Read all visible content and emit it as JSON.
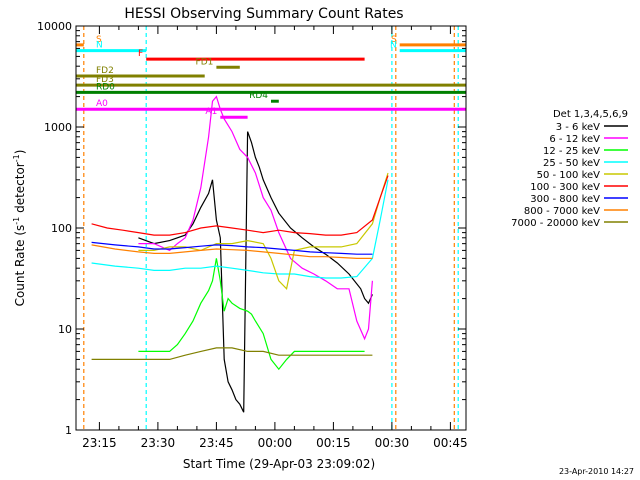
{
  "chart_data": {
    "type": "line",
    "title": "HESSI Observing Summary Count Rates",
    "xlabel": "Start Time (29-Apr-03 23:09:02)",
    "ylabel_main": "Count Rate (s",
    "ylabel_exp1": "-1",
    "ylabel_mid": " detector",
    "ylabel_exp2": "-1",
    "ylabel_end": ")",
    "yscale": "log",
    "ylim": [
      1,
      10000
    ],
    "xlim_minutes": [
      0,
      100
    ],
    "x_ticks": [
      {
        "label": "23:15",
        "min": 6
      },
      {
        "label": "23:30",
        "min": 21
      },
      {
        "label": "23:45",
        "min": 36
      },
      {
        "label": "00:00",
        "min": 51
      },
      {
        "label": "00:15",
        "min": 66
      },
      {
        "label": "00:30",
        "min": 81
      },
      {
        "label": "00:45",
        "min": 96
      }
    ],
    "y_ticks": [
      {
        "label": "1",
        "v": 1
      },
      {
        "label": "10",
        "v": 10
      },
      {
        "label": "100",
        "v": 100
      },
      {
        "label": "1000",
        "v": 1000
      },
      {
        "label": "10000",
        "v": 10000
      }
    ],
    "legend_title": "Det 1,3,4,5,6,9",
    "legend_position": "right",
    "series": [
      {
        "name": "3 - 6 keV",
        "color": "#000000",
        "x": [
          16,
          20,
          24,
          28,
          30,
          32,
          34,
          35,
          36,
          37,
          38,
          39,
          40,
          41,
          42,
          43,
          44,
          45,
          46,
          47,
          48,
          50,
          52,
          55,
          58,
          61,
          64,
          67,
          70,
          73,
          74,
          75,
          76
        ],
        "y": [
          80,
          70,
          75,
          85,
          110,
          160,
          220,
          300,
          120,
          80,
          5,
          3,
          2.5,
          2,
          1.8,
          1.5,
          900,
          700,
          500,
          400,
          300,
          200,
          140,
          100,
          80,
          65,
          55,
          45,
          35,
          25,
          20,
          18,
          22
        ]
      },
      {
        "name": "6 - 12 keV",
        "color": "#ff00ff",
        "x": [
          16,
          20,
          24,
          26,
          28,
          30,
          32,
          34,
          35,
          36,
          37,
          38,
          40,
          42,
          44,
          46,
          48,
          50,
          52,
          55,
          58,
          61,
          64,
          67,
          70,
          72,
          74,
          75,
          76
        ],
        "y": [
          70,
          70,
          60,
          70,
          80,
          120,
          250,
          800,
          1800,
          2000,
          1500,
          1200,
          900,
          600,
          500,
          350,
          200,
          150,
          90,
          50,
          40,
          35,
          30,
          25,
          25,
          12,
          8,
          10,
          30
        ]
      },
      {
        "name": "12 - 25 keV",
        "color": "#00ff00",
        "x": [
          16,
          18,
          20,
          22,
          24,
          26,
          28,
          30,
          32,
          34,
          35,
          36,
          37,
          38,
          39,
          40,
          42,
          44,
          45,
          46,
          48,
          50,
          52,
          54,
          56,
          58,
          60,
          64,
          68,
          72,
          74
        ],
        "y": [
          6,
          6,
          6,
          6,
          6,
          7,
          9,
          12,
          18,
          24,
          30,
          50,
          30,
          15,
          20,
          18,
          16,
          15,
          14,
          12,
          9,
          5,
          4,
          5,
          6,
          6,
          6,
          6,
          6,
          6,
          6
        ]
      },
      {
        "name": "25 - 50 keV",
        "color": "#00ffff",
        "x": [
          4,
          10,
          16,
          20,
          24,
          28,
          32,
          36,
          40,
          44,
          48,
          52,
          56,
          60,
          64,
          68,
          72,
          76,
          78,
          80
        ],
        "y": [
          45,
          42,
          40,
          38,
          38,
          40,
          40,
          42,
          40,
          38,
          36,
          35,
          35,
          33,
          32,
          32,
          33,
          50,
          120,
          300
        ]
      },
      {
        "name": "50 - 100 keV",
        "color": "#c8c800",
        "x": [
          16,
          20,
          24,
          28,
          32,
          36,
          40,
          44,
          48,
          50,
          52,
          54,
          56,
          60,
          64,
          68,
          72,
          76,
          78,
          80
        ],
        "y": [
          60,
          60,
          65,
          65,
          60,
          70,
          70,
          75,
          70,
          50,
          30,
          25,
          60,
          65,
          65,
          65,
          70,
          110,
          200,
          350
        ]
      },
      {
        "name": "100 - 300 keV",
        "color": "#ff0000",
        "x": [
          4,
          8,
          12,
          16,
          20,
          24,
          28,
          32,
          36,
          40,
          44,
          48,
          52,
          56,
          60,
          64,
          68,
          72,
          76,
          78,
          80
        ],
        "y": [
          110,
          100,
          95,
          90,
          85,
          85,
          90,
          100,
          105,
          100,
          95,
          90,
          95,
          90,
          88,
          85,
          85,
          90,
          120,
          200,
          330
        ]
      },
      {
        "name": "300 - 800 keV",
        "color": "#0000ff",
        "x": [
          4,
          10,
          16,
          20,
          24,
          28,
          32,
          36,
          40,
          44,
          48,
          52,
          56,
          60,
          64,
          68,
          72,
          76
        ],
        "y": [
          72,
          68,
          65,
          62,
          62,
          64,
          66,
          68,
          67,
          65,
          64,
          62,
          60,
          58,
          57,
          56,
          55,
          55
        ]
      },
      {
        "name": "800 - 7000 keV",
        "color": "#ff8000",
        "x": [
          4,
          10,
          16,
          20,
          24,
          28,
          32,
          36,
          40,
          44,
          48,
          52,
          56,
          60,
          64,
          68,
          72,
          76
        ],
        "y": [
          68,
          62,
          58,
          56,
          56,
          58,
          60,
          62,
          61,
          60,
          58,
          56,
          54,
          52,
          52,
          51,
          50,
          50
        ]
      },
      {
        "name": "7000 - 20000 keV",
        "color": "#808000",
        "x": [
          4,
          8,
          12,
          16,
          20,
          24,
          28,
          32,
          36,
          40,
          44,
          48,
          52,
          56,
          60,
          64,
          68,
          72,
          76
        ],
        "y": [
          5,
          5,
          5,
          5,
          5,
          5,
          5.5,
          6,
          6.5,
          6.5,
          6,
          6,
          5.5,
          5.5,
          5.5,
          5.5,
          5.5,
          5.5,
          5.5
        ]
      }
    ],
    "flags": [
      {
        "label": "S",
        "color": "#ff8000",
        "x0": 0,
        "x1": 2,
        "y": 6500
      },
      {
        "label": "S",
        "color": "#ff8000",
        "x0": 83,
        "x1": 100,
        "y": 6500
      },
      {
        "label": "N",
        "color": "#00ffff",
        "x0": 0,
        "x1": 18,
        "y": 5700
      },
      {
        "label": "N",
        "color": "#00ffff",
        "x0": 83,
        "x1": 100,
        "y": 5700
      },
      {
        "label": "F",
        "color": "#ff0000",
        "x0": 18,
        "x1": 74,
        "y": 4700
      },
      {
        "label": "FD1",
        "color": "#808000",
        "x0": 36,
        "x1": 42,
        "y": 3900
      },
      {
        "label": "FD2",
        "color": "#808000",
        "x0": 0,
        "x1": 33,
        "y": 3200
      },
      {
        "label": "FD3",
        "color": "#808000",
        "x0": 0,
        "x1": 100,
        "y": 2600
      },
      {
        "label": "RD0",
        "color": "#008000",
        "x0": 0,
        "x1": 100,
        "y": 2200
      },
      {
        "label": "RD4",
        "color": "#008000",
        "x0": 50,
        "x1": 52,
        "y": 1800
      },
      {
        "label": "A0",
        "color": "#ff00ff",
        "x0": 0,
        "x1": 100,
        "y": 1500
      },
      {
        "label": "A1",
        "color": "#ff00ff",
        "x0": 37,
        "x1": 44,
        "y": 1250
      }
    ],
    "vlines": [
      {
        "x": 2,
        "color": "#ff8000"
      },
      {
        "x": 18,
        "color": "#00ffff"
      },
      {
        "x": 81,
        "color": "#00ffff"
      },
      {
        "x": 82,
        "color": "#ff8000"
      },
      {
        "x": 97,
        "color": "#ff8000"
      },
      {
        "x": 98,
        "color": "#00ffff"
      }
    ],
    "timestamp": "23-Apr-2010 14:27"
  }
}
